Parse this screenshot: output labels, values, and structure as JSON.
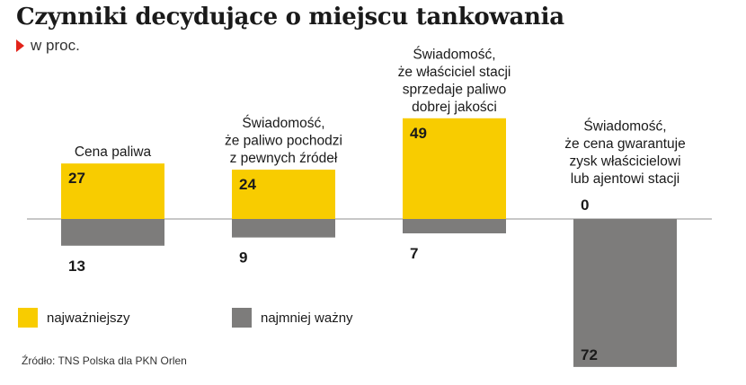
{
  "header": {
    "title": "Czynniki decydujące o miejscu tankowania",
    "subtitle": "w proc."
  },
  "legend": {
    "most_important": "najważniejszy",
    "least_important": "najmniej ważny"
  },
  "source": "Źródło: TNS Polska dla PKN Orlen",
  "colors": {
    "positive": "#f8cc00",
    "negative": "#7d7c7b",
    "axis": "#8f8f8f",
    "accent": "#e2231a"
  },
  "chart_data": {
    "type": "bar",
    "categories": [
      [
        "Cena paliwa"
      ],
      [
        "Świadomość,",
        "że paliwo pochodzi",
        "z pewnych źródeł"
      ],
      [
        "Świadomość,",
        "że właściciel stacji",
        "sprzedaje paliwo",
        "dobrej jakości"
      ],
      [
        "Świadomość,",
        "że cena gwarantuje",
        "zysk właścicielowi",
        "lub ajentowi stacji"
      ]
    ],
    "series": [
      {
        "name": "najważniejszy",
        "values": [
          27,
          24,
          49,
          0
        ]
      },
      {
        "name": "najmniej ważny",
        "values": [
          13,
          9,
          7,
          72
        ]
      }
    ],
    "ylabel": "w proc."
  }
}
